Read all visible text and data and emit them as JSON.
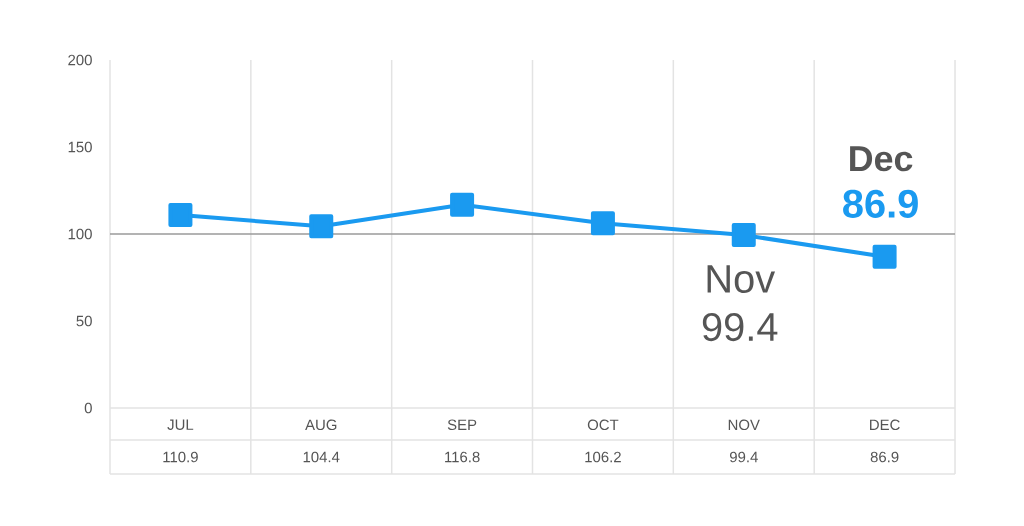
{
  "chart_data": {
    "type": "line",
    "categories": [
      "JUL",
      "AUG",
      "SEP",
      "OCT",
      "NOV",
      "DEC"
    ],
    "series": [
      {
        "color": "#1a9af0",
        "values": [
          110.9,
          104.4,
          116.8,
          106.2,
          99.4,
          86.9
        ]
      }
    ],
    "ylim": [
      0,
      200
    ],
    "yticks": [
      0,
      50,
      100,
      150,
      200
    ],
    "grid": "x",
    "marker": "square",
    "line_style": "solid",
    "data_labels": true,
    "ref_lines": [
      {
        "axis": "y",
        "value": 100,
        "color": "#9a9a9a"
      }
    ],
    "annotations": [
      {
        "text": "Nov",
        "x": "NOV",
        "y": 99.4
      },
      {
        "text": "99.4",
        "x": "NOV",
        "y": 99.4
      },
      {
        "text": "Dec",
        "x": "DEC",
        "y": 86.9
      },
      {
        "text": "86.9",
        "x": "DEC",
        "y": 86.9
      }
    ]
  }
}
